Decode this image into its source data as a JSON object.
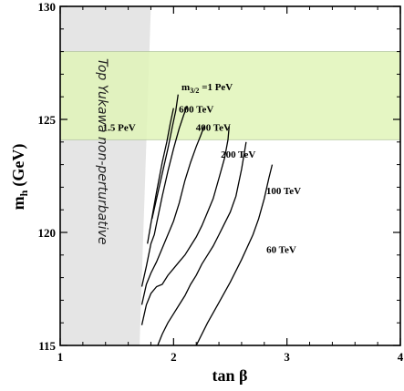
{
  "chart_data": {
    "type": "line",
    "xlabel": "tan β",
    "ylabel_main": "m",
    "ylabel_sub": "h",
    "ylabel_unit": "(GeV)",
    "xlim": [
      1,
      4
    ],
    "ylim": [
      115,
      130
    ],
    "x_ticks": [
      1,
      2,
      3,
      4
    ],
    "y_ticks": [
      115,
      120,
      125,
      130
    ],
    "higgs_band": {
      "y_range": [
        124.1,
        128.0
      ],
      "color": "#e0f5b8"
    },
    "excluded_region": {
      "x_range": [
        1.0,
        1.7
      ],
      "boundary_top_x": 1.8,
      "color": "#e5e5e5",
      "label": "Top Yukawa non-perturbative"
    },
    "series": [
      {
        "label_main": "m",
        "label_sub": "3/2",
        "label_rest": " =1 PeV",
        "label_x": 2.07,
        "label_y": 126.3,
        "x": [
          1.81,
          1.85,
          1.9,
          1.95,
          1.99,
          2.02,
          2.04
        ],
        "y": [
          120.6,
          121.5,
          122.6,
          123.7,
          124.7,
          125.4,
          126.1
        ]
      },
      {
        "name": "1.5 PeV",
        "label_x": 1.52,
        "label_y": 124.5,
        "x": [
          1.77,
          1.8,
          1.85,
          1.9,
          1.94,
          1.97,
          2.0
        ],
        "y": [
          119.5,
          120.4,
          121.8,
          123.1,
          124.0,
          124.8,
          125.5
        ]
      },
      {
        "name": "600 TeV",
        "label_x": 2.2,
        "label_y": 125.3,
        "x": [
          1.72,
          1.76,
          1.8,
          1.83,
          1.85,
          1.9,
          1.95,
          2.0,
          2.05,
          2.09,
          2.12
        ],
        "y": [
          117.6,
          118.5,
          119.5,
          119.9,
          120.4,
          121.6,
          122.7,
          123.7,
          124.6,
          125.2,
          125.6
        ]
      },
      {
        "name": "400 TeV",
        "label_x": 2.35,
        "label_y": 124.5,
        "x": [
          1.72,
          1.76,
          1.8,
          1.85,
          1.9,
          1.95,
          2.0,
          2.05,
          2.1,
          2.15,
          2.2,
          2.24,
          2.27
        ],
        "y": [
          116.8,
          117.7,
          118.2,
          118.7,
          119.3,
          119.9,
          120.5,
          121.3,
          122.3,
          123.1,
          123.8,
          124.3,
          124.7
        ]
      },
      {
        "name": "200 TeV",
        "label_x": 2.57,
        "label_y": 123.3,
        "x": [
          1.72,
          1.76,
          1.8,
          1.85,
          1.9,
          1.95,
          2.0,
          2.05,
          2.1,
          2.15,
          2.2,
          2.25,
          2.3,
          2.35,
          2.4,
          2.45,
          2.48,
          2.49
        ],
        "y": [
          115.9,
          116.8,
          117.3,
          117.6,
          117.7,
          118.1,
          118.4,
          118.7,
          119.0,
          119.4,
          119.8,
          120.3,
          120.9,
          121.5,
          122.4,
          123.3,
          124.1,
          124.7
        ]
      },
      {
        "name": "100 TeV",
        "label_x": 2.97,
        "label_y": 121.7,
        "x": [
          1.86,
          1.9,
          1.95,
          2.0,
          2.05,
          2.1,
          2.15,
          2.2,
          2.25,
          2.3,
          2.35,
          2.4,
          2.45,
          2.5,
          2.55,
          2.6,
          2.64
        ],
        "y": [
          115.0,
          115.5,
          116.0,
          116.4,
          116.8,
          117.2,
          117.7,
          118.1,
          118.6,
          119.0,
          119.4,
          119.9,
          120.4,
          120.9,
          121.6,
          122.8,
          124.0
        ]
      },
      {
        "name": "60 TeV",
        "label_x": 2.95,
        "label_y": 119.1,
        "x": [
          2.2,
          2.3,
          2.4,
          2.5,
          2.6,
          2.7,
          2.75,
          2.8,
          2.84,
          2.87
        ],
        "y": [
          115.0,
          116.0,
          116.9,
          117.8,
          118.8,
          119.9,
          120.6,
          121.5,
          122.4,
          123.0
        ]
      }
    ]
  }
}
